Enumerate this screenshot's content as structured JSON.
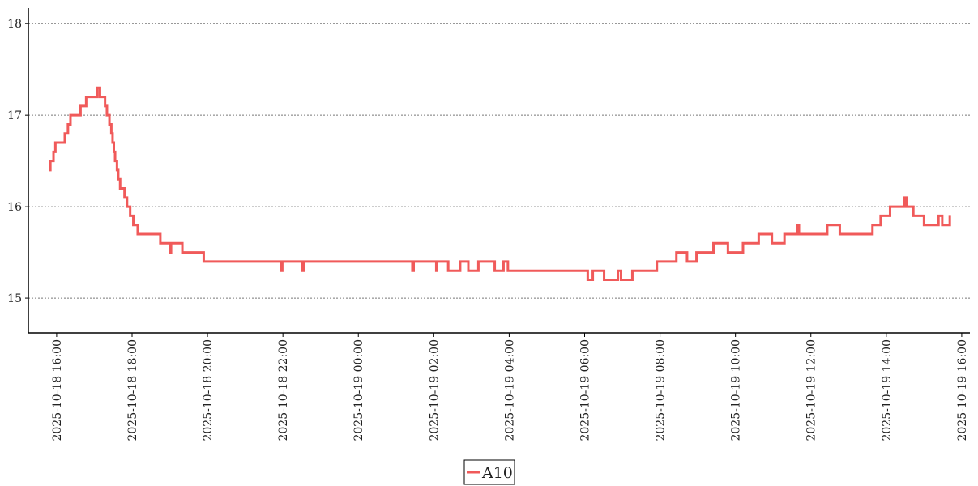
{
  "chart_data": {
    "type": "line",
    "step": "post",
    "x": [
      "2025-10-18 15:48",
      "2025-10-18 15:50",
      "2025-10-18 15:55",
      "2025-10-18 15:58",
      "2025-10-18 16:13",
      "2025-10-18 16:18",
      "2025-10-18 16:22",
      "2025-10-18 16:38",
      "2025-10-18 16:47",
      "2025-10-18 17:05",
      "2025-10-18 17:09",
      "2025-10-18 17:17",
      "2025-10-18 17:20",
      "2025-10-18 17:24",
      "2025-10-18 17:27",
      "2025-10-18 17:29",
      "2025-10-18 17:31",
      "2025-10-18 17:33",
      "2025-10-18 17:36",
      "2025-10-18 17:38",
      "2025-10-18 17:41",
      "2025-10-18 17:48",
      "2025-10-18 17:52",
      "2025-10-18 17:57",
      "2025-10-18 18:02",
      "2025-10-18 18:09",
      "2025-10-18 18:45",
      "2025-10-18 19:00",
      "2025-10-18 19:02",
      "2025-10-18 19:20",
      "2025-10-18 19:54",
      "2025-10-18 21:57",
      "2025-10-18 21:59",
      "2025-10-18 22:31",
      "2025-10-18 22:33",
      "2025-10-19 01:26",
      "2025-10-19 01:28",
      "2025-10-19 02:04",
      "2025-10-19 02:05",
      "2025-10-19 02:23",
      "2025-10-19 02:42",
      "2025-10-19 02:55",
      "2025-10-19 03:11",
      "2025-10-19 03:37",
      "2025-10-19 03:51",
      "2025-10-19 03:58",
      "2025-10-19 06:05",
      "2025-10-19 06:13",
      "2025-10-19 06:31",
      "2025-10-19 06:53",
      "2025-10-19 06:58",
      "2025-10-19 07:16",
      "2025-10-19 07:55",
      "2025-10-19 08:26",
      "2025-10-19 08:43",
      "2025-10-19 08:58",
      "2025-10-19 09:25",
      "2025-10-19 09:48",
      "2025-10-19 10:12",
      "2025-10-19 10:37",
      "2025-10-19 10:58",
      "2025-10-19 11:18",
      "2025-10-19 11:39",
      "2025-10-19 11:41",
      "2025-10-19 12:26",
      "2025-10-19 12:46",
      "2025-10-19 13:38",
      "2025-10-19 13:51",
      "2025-10-19 14:06",
      "2025-10-19 14:29",
      "2025-10-19 14:32",
      "2025-10-19 14:43",
      "2025-10-19 15:00",
      "2025-10-19 15:23",
      "2025-10-19 15:29",
      "2025-10-19 15:41"
    ],
    "series": [
      {
        "name": "A10",
        "color": "#f05a5a",
        "values": [
          16.4,
          16.5,
          16.6,
          16.7,
          16.8,
          16.9,
          17.0,
          17.1,
          17.2,
          17.3,
          17.2,
          17.1,
          17.0,
          16.9,
          16.8,
          16.7,
          16.6,
          16.5,
          16.4,
          16.3,
          16.2,
          16.1,
          16.0,
          15.9,
          15.8,
          15.7,
          15.6,
          15.5,
          15.6,
          15.5,
          15.4,
          15.3,
          15.4,
          15.3,
          15.4,
          15.3,
          15.4,
          15.3,
          15.4,
          15.3,
          15.4,
          15.3,
          15.4,
          15.3,
          15.4,
          15.3,
          15.2,
          15.3,
          15.2,
          15.3,
          15.2,
          15.3,
          15.4,
          15.5,
          15.4,
          15.5,
          15.6,
          15.5,
          15.6,
          15.7,
          15.6,
          15.7,
          15.8,
          15.7,
          15.8,
          15.7,
          15.8,
          15.9,
          16.0,
          16.1,
          16.0,
          15.9,
          15.8,
          15.9,
          15.8,
          15.9
        ]
      }
    ],
    "xlim": [
      "2025-10-18 15:15",
      "2025-10-19 16:13"
    ],
    "xticks": [
      "2025-10-18 16:00",
      "2025-10-18 18:00",
      "2025-10-18 20:00",
      "2025-10-18 22:00",
      "2025-10-19 00:00",
      "2025-10-19 02:00",
      "2025-10-19 04:00",
      "2025-10-19 06:00",
      "2025-10-19 08:00",
      "2025-10-19 10:00",
      "2025-10-19 12:00",
      "2025-10-19 14:00",
      "2025-10-19 16:00"
    ],
    "ylim": [
      14.62,
      18.17
    ],
    "yticks": [
      15,
      16,
      17,
      18
    ],
    "grid": true,
    "legend": "bottom"
  }
}
